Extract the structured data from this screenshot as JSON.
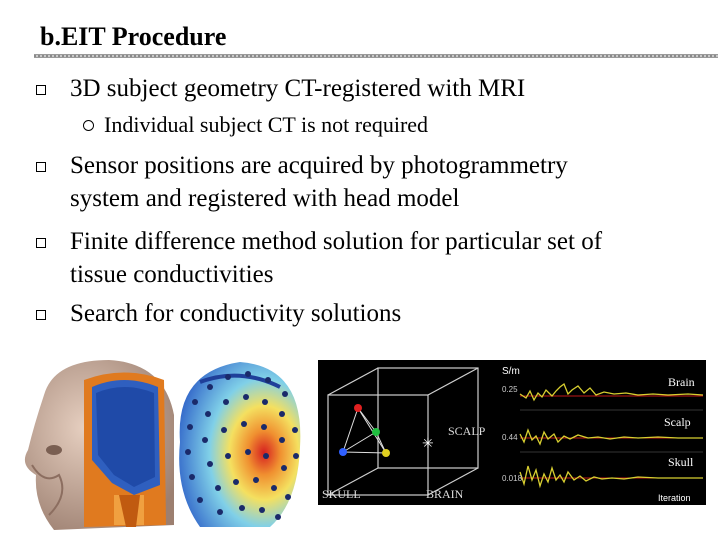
{
  "slide": {
    "title": "b.EIT Procedure",
    "bullets": [
      {
        "lines": [
          "3D subject geometry CT-registered with MRI"
        ]
      },
      {
        "lines": [
          "Sensor positions are acquired by photogrammetry",
          "system and registered with head model"
        ]
      },
      {
        "lines": [
          "Finite difference method solution for particular set of",
          "tissue conductivities"
        ]
      },
      {
        "lines": [
          "Search for conductivity solutions"
        ]
      }
    ],
    "sub_bullet": "Individual subject CT is not required"
  },
  "figure": {
    "cube_labels": {
      "scalp": "SCALP",
      "skull": "SKULL",
      "brain": "BRAIN"
    },
    "plot": {
      "unit": "S/m",
      "xlabel": "Iteration",
      "series": [
        {
          "name": "Brain",
          "value_label": "0.25"
        },
        {
          "name": "Scalp",
          "value_label": "0.44"
        },
        {
          "name": "Skull",
          "value_label": "0.018"
        }
      ]
    }
  }
}
